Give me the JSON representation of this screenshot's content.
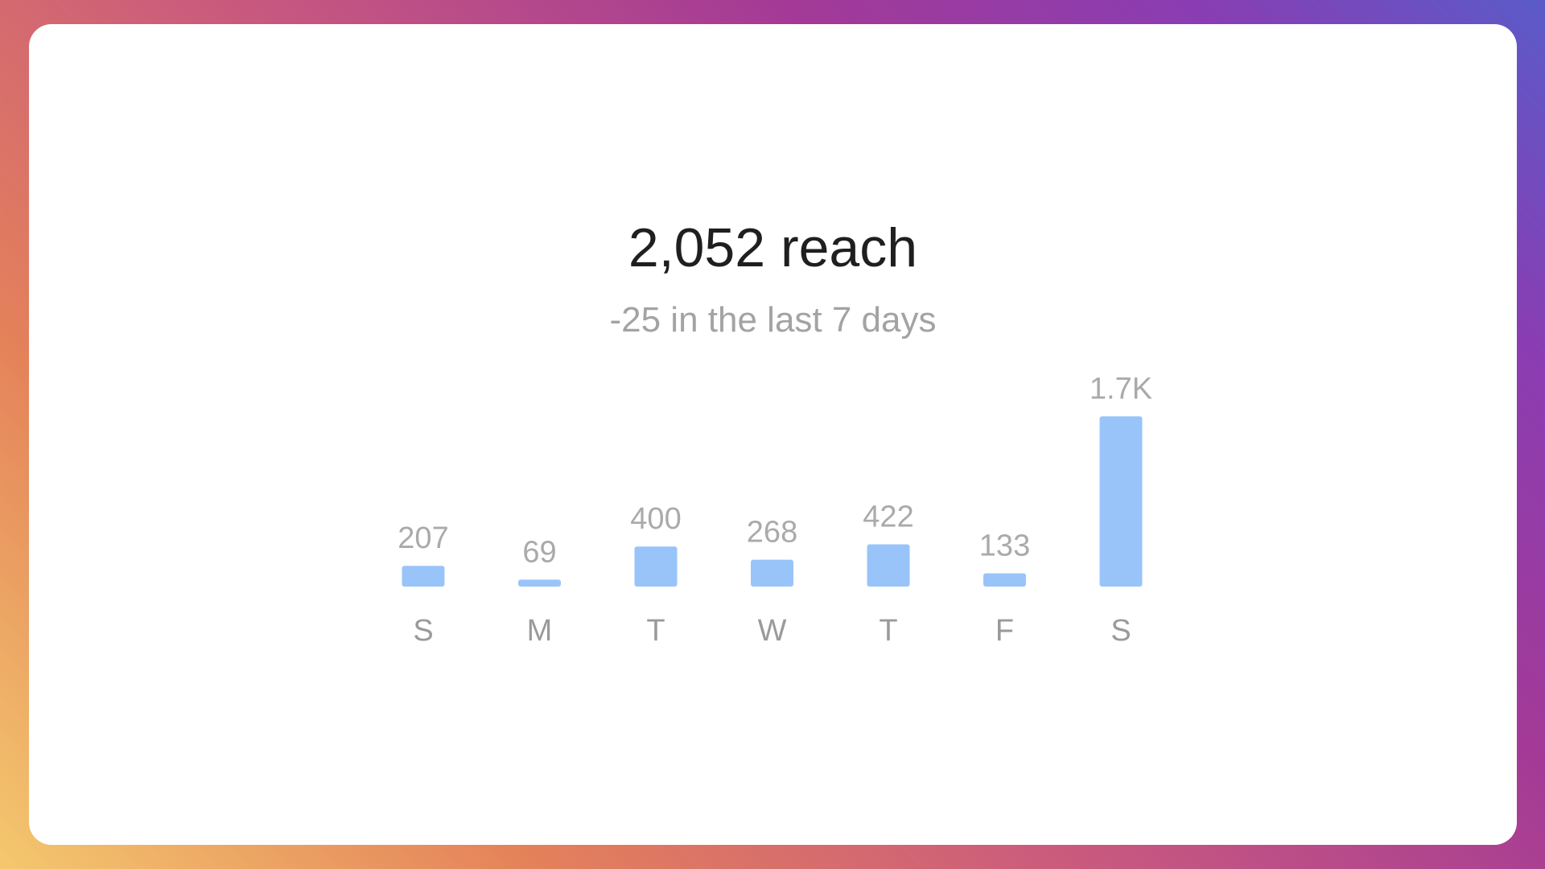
{
  "headline": "2,052 reach",
  "subline": "-25 in the last 7 days",
  "colors": {
    "bar": "#99c4fa",
    "value_label": "#aaaaaa",
    "category_label": "#9a9a9a",
    "headline": "#1f1f1f",
    "subline": "#a3a3a3"
  },
  "chart_data": {
    "type": "bar",
    "categories": [
      "S",
      "M",
      "T",
      "W",
      "T",
      "F",
      "S"
    ],
    "values": [
      207,
      69,
      400,
      268,
      422,
      133,
      1700
    ],
    "value_labels": [
      "207",
      "69",
      "400",
      "268",
      "422",
      "133",
      "1.7K"
    ],
    "title": "",
    "xlabel": "",
    "ylabel": "",
    "grid": false
  }
}
